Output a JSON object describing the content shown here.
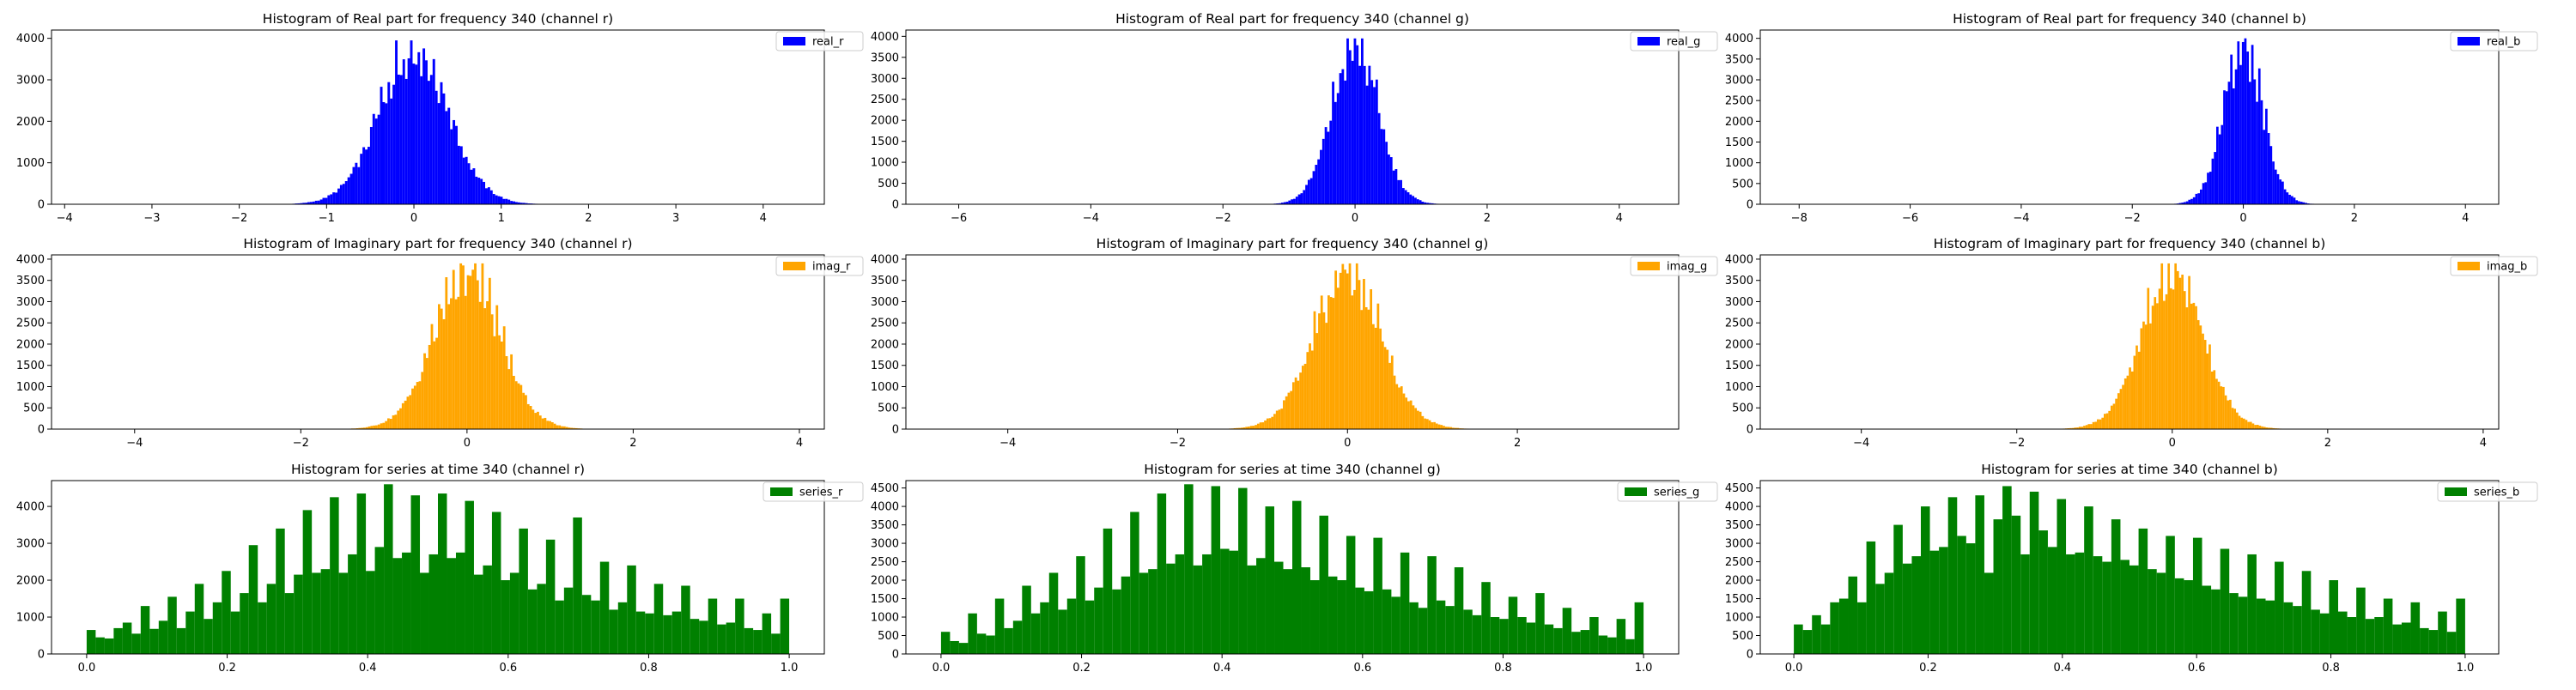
{
  "figure": {
    "background": "#ffffff"
  },
  "chart_data": [
    {
      "type": "bar",
      "title": "Histogram of Real part for frequency 340 (channel r)",
      "xlabel": "",
      "ylabel": "",
      "xlim": [
        -4.15,
        4.7
      ],
      "ylim": [
        0,
        4200
      ],
      "xticks": [
        -4,
        -3,
        -2,
        -1,
        0,
        1,
        2,
        3,
        4
      ],
      "yticks": [
        0,
        1000,
        2000,
        3000,
        4000
      ],
      "legend_position": "top-right",
      "grid": false,
      "series": [
        {
          "name": "real_r",
          "color": "#0000ff",
          "kind": "normal",
          "center": 0.0,
          "spread": 0.45,
          "peak": 3950,
          "range": [
            -4.0,
            4.6
          ],
          "bins": 300
        }
      ]
    },
    {
      "type": "bar",
      "title": "Histogram of Real part for frequency 340 (channel g)",
      "xlabel": "",
      "ylabel": "",
      "xlim": [
        -6.8,
        4.9
      ],
      "ylim": [
        0,
        4150
      ],
      "xticks": [
        -6,
        -4,
        -2,
        0,
        2,
        4
      ],
      "yticks": [
        0,
        500,
        1000,
        1500,
        2000,
        2500,
        3000,
        3500,
        4000
      ],
      "legend_position": "top-right",
      "grid": false,
      "series": [
        {
          "name": "real_g",
          "color": "#0000ff",
          "kind": "normal",
          "center": 0.0,
          "spread": 0.4,
          "peak": 3950,
          "range": [
            -6.4,
            4.6
          ],
          "bins": 300
        }
      ]
    },
    {
      "type": "bar",
      "title": "Histogram of Real part for frequency 340 (channel b)",
      "xlabel": "",
      "ylabel": "",
      "xlim": [
        -8.7,
        4.6
      ],
      "ylim": [
        0,
        4200
      ],
      "xticks": [
        -8,
        -6,
        -4,
        -2,
        0,
        2,
        4
      ],
      "yticks": [
        0,
        500,
        1000,
        1500,
        2000,
        2500,
        3000,
        3500,
        4000
      ],
      "legend_position": "top-right",
      "grid": false,
      "series": [
        {
          "name": "real_b",
          "color": "#0000ff",
          "kind": "normal",
          "center": 0.0,
          "spread": 0.4,
          "peak": 4000,
          "range": [
            -8.3,
            4.3
          ],
          "bins": 300
        }
      ]
    },
    {
      "type": "bar",
      "title": "Histogram of Imaginary part for frequency 340 (channel r)",
      "xlabel": "",
      "ylabel": "",
      "xlim": [
        -5.0,
        4.3
      ],
      "ylim": [
        0,
        4100
      ],
      "xticks": [
        -4,
        -2,
        0,
        2,
        4
      ],
      "yticks": [
        0,
        500,
        1000,
        1500,
        2000,
        2500,
        3000,
        3500,
        4000
      ],
      "legend_position": "top-right",
      "grid": false,
      "series": [
        {
          "name": "imag_r",
          "color": "#ffa500",
          "kind": "normal",
          "center": 0.0,
          "spread": 0.45,
          "peak": 3900,
          "range": [
            -4.7,
            4.0
          ],
          "bins": 300
        }
      ]
    },
    {
      "type": "bar",
      "title": "Histogram of Imaginary part for frequency 340 (channel g)",
      "xlabel": "",
      "ylabel": "",
      "xlim": [
        -5.2,
        3.9
      ],
      "ylim": [
        0,
        4100
      ],
      "xticks": [
        -4,
        -2,
        0,
        2
      ],
      "yticks": [
        0,
        500,
        1000,
        1500,
        2000,
        2500,
        3000,
        3500,
        4000
      ],
      "legend_position": "top-right",
      "grid": false,
      "series": [
        {
          "name": "imag_g",
          "color": "#ffa500",
          "kind": "normal",
          "center": 0.0,
          "spread": 0.45,
          "peak": 3900,
          "range": [
            -4.8,
            3.5
          ],
          "bins": 300
        }
      ]
    },
    {
      "type": "bar",
      "title": "Histogram of Imaginary part for frequency 340 (channel b)",
      "xlabel": "",
      "ylabel": "",
      "xlim": [
        -5.3,
        4.2
      ],
      "ylim": [
        0,
        4100
      ],
      "xticks": [
        -4,
        -2,
        0,
        2,
        4
      ],
      "yticks": [
        0,
        500,
        1000,
        1500,
        2000,
        2500,
        3000,
        3500,
        4000
      ],
      "legend_position": "top-right",
      "grid": false,
      "series": [
        {
          "name": "imag_b",
          "color": "#ffa500",
          "kind": "normal",
          "center": 0.0,
          "spread": 0.45,
          "peak": 3900,
          "range": [
            -4.9,
            3.9
          ],
          "bins": 300
        }
      ]
    },
    {
      "type": "bar",
      "title": "Histogram for series at time 340 (channel r)",
      "xlabel": "",
      "ylabel": "",
      "xlim": [
        -0.05,
        1.05
      ],
      "ylim": [
        0,
        4700
      ],
      "xticks": [
        0.0,
        0.2,
        0.4,
        0.6,
        0.8,
        1.0
      ],
      "yticks": [
        0,
        1000,
        2000,
        3000,
        4000
      ],
      "legend_position": "top-right",
      "grid": false,
      "series": [
        {
          "name": "series_r",
          "color": "#008000",
          "kind": "values",
          "range": [
            0.0,
            1.0
          ],
          "values": [
            650,
            450,
            420,
            700,
            850,
            550,
            1300,
            680,
            900,
            1550,
            700,
            1150,
            1900,
            950,
            1400,
            2250,
            1150,
            1650,
            2950,
            1400,
            1900,
            3400,
            1650,
            2150,
            3900,
            2200,
            2300,
            4250,
            2200,
            2700,
            4350,
            2250,
            2900,
            4600,
            2600,
            2750,
            4300,
            2200,
            2700,
            4350,
            2600,
            2750,
            4150,
            2150,
            2400,
            3850,
            2000,
            2200,
            3400,
            1750,
            1900,
            3100,
            1450,
            1800,
            3700,
            1600,
            1450,
            2500,
            1200,
            1400,
            2400,
            1150,
            1100,
            1900,
            1050,
            1150,
            1850,
            950,
            900,
            1500,
            800,
            850,
            1500,
            700,
            650,
            1100,
            550,
            1500
          ]
        }
      ]
    },
    {
      "type": "bar",
      "title": "Histogram for series at time 340 (channel g)",
      "xlabel": "",
      "ylabel": "",
      "xlim": [
        -0.05,
        1.05
      ],
      "ylim": [
        0,
        4700
      ],
      "xticks": [
        0.0,
        0.2,
        0.4,
        0.6,
        0.8,
        1.0
      ],
      "yticks": [
        0,
        500,
        1000,
        1500,
        2000,
        2500,
        3000,
        3500,
        4000,
        4500
      ],
      "legend_position": "top-right",
      "grid": false,
      "series": [
        {
          "name": "series_g",
          "color": "#008000",
          "kind": "values",
          "range": [
            0.0,
            1.0
          ],
          "values": [
            600,
            350,
            300,
            1100,
            550,
            500,
            1500,
            700,
            900,
            1850,
            1100,
            1400,
            2200,
            1200,
            1500,
            2650,
            1450,
            1800,
            3400,
            1750,
            2100,
            3850,
            2200,
            2300,
            4350,
            2450,
            2700,
            4600,
            2400,
            2700,
            4550,
            2850,
            2800,
            4500,
            2400,
            2600,
            4000,
            2500,
            2300,
            4150,
            2350,
            2000,
            3750,
            2100,
            2000,
            3200,
            1800,
            1700,
            3150,
            1750,
            1550,
            2750,
            1400,
            1250,
            2650,
            1450,
            1300,
            2350,
            1200,
            1050,
            1950,
            1000,
            950,
            1550,
            1000,
            850,
            1650,
            800,
            700,
            1250,
            600,
            650,
            1000,
            500,
            450,
            950,
            400,
            1400
          ]
        }
      ]
    },
    {
      "type": "bar",
      "title": "Histogram for series at time 340 (channel b)",
      "xlabel": "",
      "ylabel": "",
      "xlim": [
        -0.05,
        1.05
      ],
      "ylim": [
        0,
        4700
      ],
      "xticks": [
        0.0,
        0.2,
        0.4,
        0.6,
        0.8,
        1.0
      ],
      "yticks": [
        0,
        500,
        1000,
        1500,
        2000,
        2500,
        3000,
        3500,
        4000,
        4500
      ],
      "legend_position": "top-right",
      "grid": false,
      "series": [
        {
          "name": "series_b",
          "color": "#008000",
          "kind": "values",
          "range": [
            0.0,
            1.0
          ],
          "values": [
            800,
            650,
            1050,
            800,
            1400,
            1500,
            2100,
            1400,
            3050,
            1900,
            2200,
            3500,
            2450,
            2650,
            4000,
            2800,
            2900,
            4250,
            3200,
            3000,
            4300,
            2200,
            3650,
            4550,
            3750,
            2700,
            4400,
            3350,
            2900,
            4200,
            2700,
            2750,
            4000,
            2650,
            2500,
            3650,
            2550,
            2400,
            3400,
            2300,
            2200,
            3200,
            2050,
            2000,
            3150,
            1850,
            1750,
            2850,
            1650,
            1550,
            2700,
            1500,
            1450,
            2500,
            1400,
            1300,
            2250,
            1200,
            1100,
            2000,
            1150,
            1000,
            1800,
            950,
            1000,
            1500,
            800,
            850,
            1400,
            700,
            650,
            1150,
            600,
            1500
          ]
        }
      ]
    }
  ]
}
